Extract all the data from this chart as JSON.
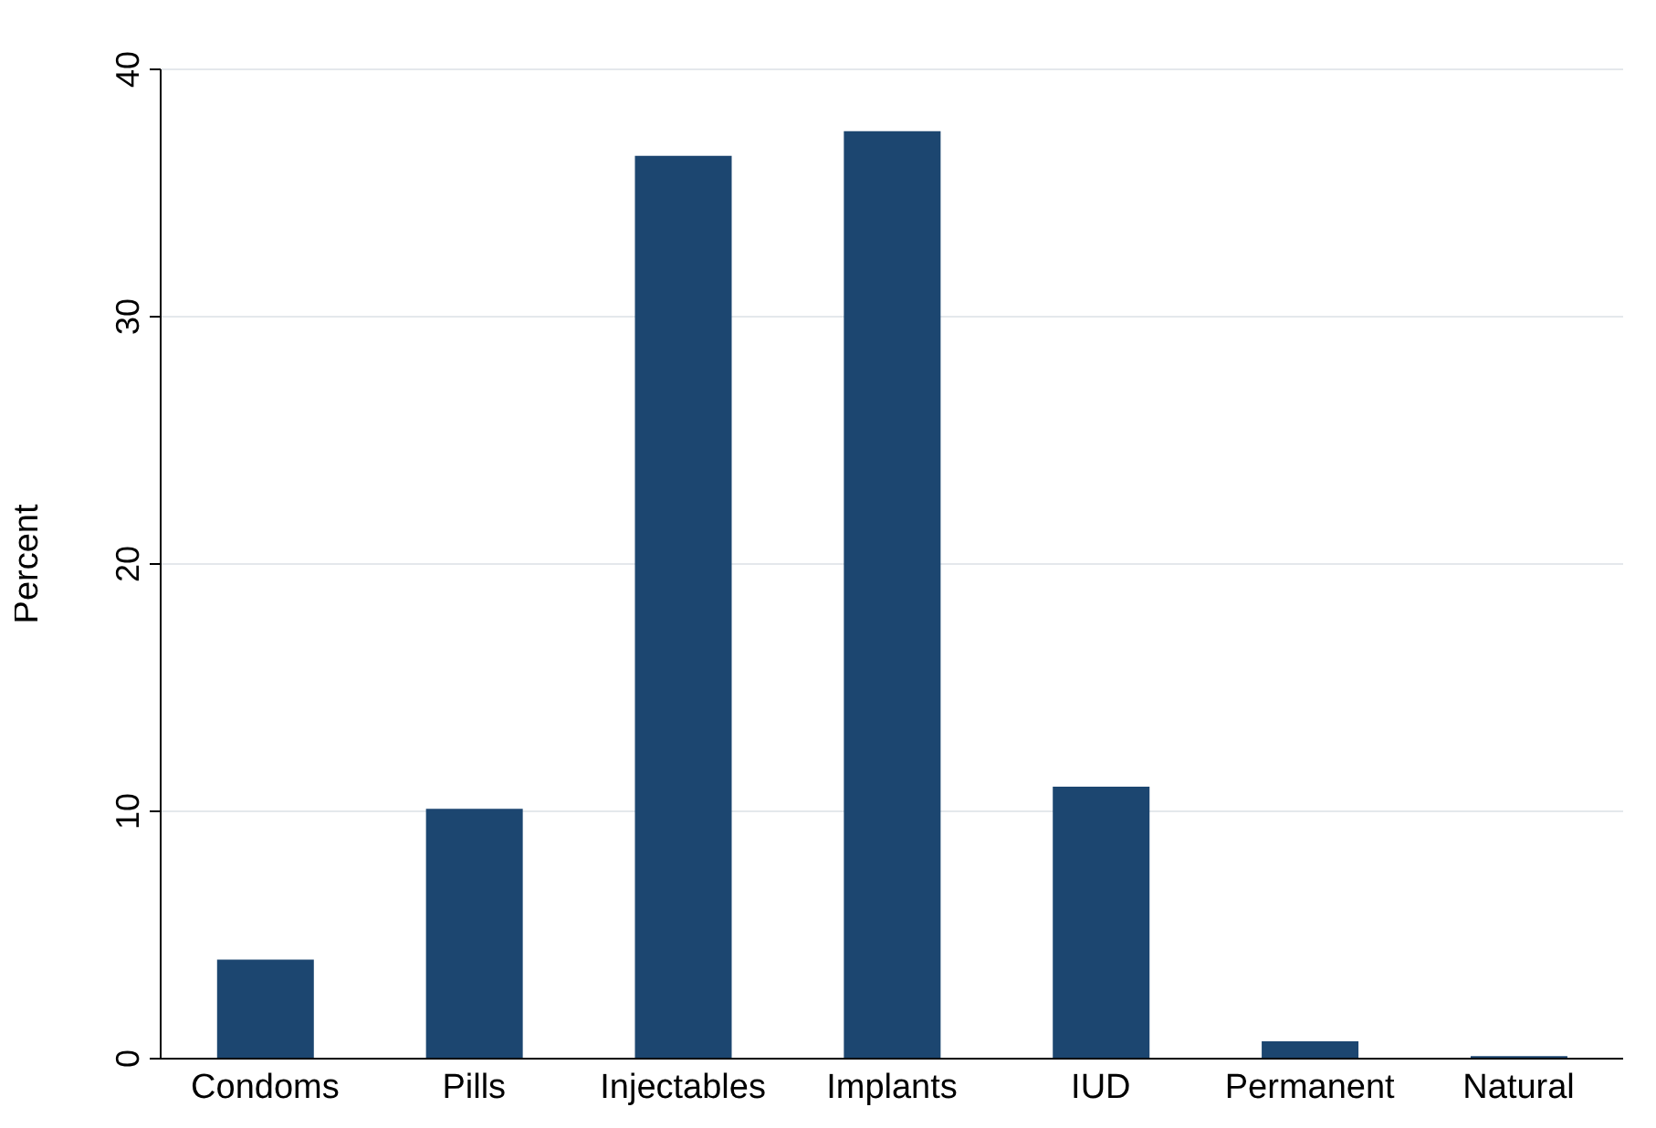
{
  "chart_data": {
    "type": "bar",
    "ylabel": "Percent",
    "categories": [
      "Condoms",
      "Pills",
      "Injectables",
      "Implants",
      "IUD",
      "Permanent",
      "Natural"
    ],
    "values": [
      4.0,
      10.1,
      36.5,
      37.5,
      11.0,
      0.7,
      0.1
    ],
    "color": "#1c4670",
    "ylim": [
      0,
      40
    ],
    "yticks": [
      0,
      10,
      20,
      30,
      40
    ],
    "grid": "y"
  }
}
